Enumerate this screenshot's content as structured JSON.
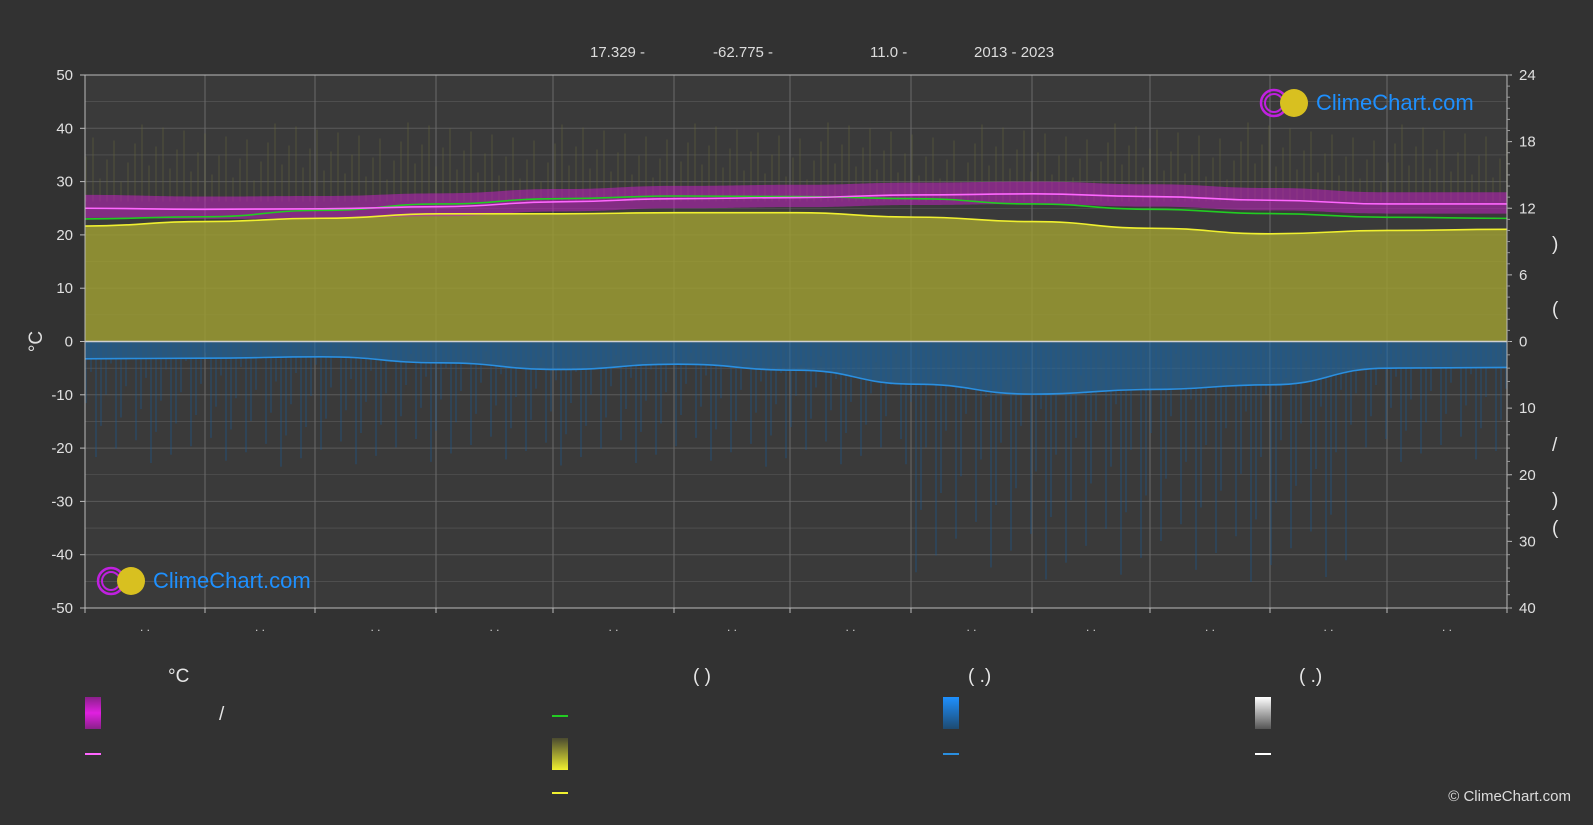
{
  "header": {
    "lat": "17.329 -",
    "lon": "-62.775 -",
    "elev": "11.0 -",
    "years": "2013 - 2023"
  },
  "logo": {
    "text": "ClimeChart.com"
  },
  "copyright": "© ClimeChart.com",
  "legend": {
    "col1_head": "°C",
    "col2_head": "(            )",
    "col3_head": "(    .)",
    "col4_head": "(    .)",
    "slash": "/"
  },
  "right_axis_chars": [
    ")",
    "(",
    "/",
    ")",
    "("
  ],
  "month_labels": [
    ". .",
    ". .",
    ". .",
    ". .",
    ". .",
    ". .",
    ". .",
    ". .",
    ". .",
    ". .",
    ". .",
    ". ."
  ],
  "colors": {
    "temp_band": "#c020c0",
    "max_temp": "#ff66ff",
    "mean_temp": "#22cc22",
    "sunshine_fill": "#9b9b32",
    "sunshine_line": "#f0f030",
    "rain_fill": "#1e6fb0",
    "rain_line": "#2a8fe0",
    "snow": "#ffffff"
  },
  "chart_data": {
    "type": "area",
    "title": "",
    "xlabel": "",
    "ylabel": "°C",
    "ylim": [
      -50,
      50
    ],
    "y_ticks": [
      50,
      40,
      30,
      20,
      10,
      0,
      -10,
      -20,
      -30,
      -40,
      -50
    ],
    "y2_ticks_top": [
      24,
      18,
      12,
      6,
      0
    ],
    "y2_ticks_bottom": [
      10,
      20,
      30,
      40
    ],
    "y2_range_top": [
      0,
      24
    ],
    "y2_range_bottom": [
      0,
      40
    ],
    "grid": true,
    "x_points": 13,
    "series": [
      {
        "key": "max_temp",
        "axis": "temp",
        "values": [
          25.0,
          24.8,
          24.9,
          25.3,
          26.2,
          26.8,
          27.0,
          27.5,
          27.7,
          27.2,
          26.5,
          25.8,
          25.8
        ]
      },
      {
        "key": "mean_temp",
        "axis": "temp",
        "values": [
          23.0,
          23.4,
          24.6,
          25.8,
          26.8,
          27.3,
          27.2,
          26.8,
          25.8,
          24.8,
          24.0,
          23.3,
          23.1
        ]
      },
      {
        "key": "temp_band_high",
        "axis": "temp",
        "values": [
          27.5,
          27.2,
          27.3,
          27.8,
          28.6,
          29.2,
          29.4,
          29.8,
          30.0,
          29.5,
          28.8,
          28.0,
          28.0
        ]
      },
      {
        "key": "temp_band_low",
        "axis": "temp",
        "values": [
          23.2,
          23.0,
          23.1,
          23.5,
          24.4,
          25.0,
          25.2,
          25.6,
          25.8,
          25.3,
          24.6,
          24.0,
          24.0
        ]
      },
      {
        "key": "sunshine",
        "axis": "sun_hours",
        "values": [
          10.4,
          10.8,
          11.1,
          11.5,
          11.5,
          11.6,
          11.6,
          11.2,
          10.8,
          10.2,
          9.7,
          10.0,
          10.1
        ]
      },
      {
        "key": "rain",
        "axis": "precip_mm",
        "values": [
          2.6,
          2.5,
          2.3,
          3.2,
          4.2,
          3.4,
          4.3,
          6.4,
          7.9,
          7.2,
          6.5,
          4.0,
          3.9
        ]
      }
    ]
  }
}
